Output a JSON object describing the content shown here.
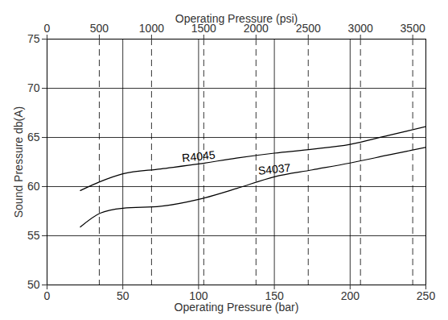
{
  "chart_data": {
    "type": "line",
    "xlabel": "Operating Pressure (bar)",
    "ylabel": "Sound Pressure db(A)",
    "x2label": "Operating Pressure (psi)",
    "xlim": [
      0,
      250
    ],
    "xticks": [
      0,
      50,
      100,
      150,
      200,
      250
    ],
    "x2lim": [
      0,
      3626
    ],
    "x2ticks": [
      0,
      500,
      1000,
      1500,
      2000,
      2500,
      3000,
      3500
    ],
    "ylim": [
      50,
      75
    ],
    "yticks": [
      50,
      55,
      60,
      65,
      70,
      75
    ],
    "grid": true,
    "x": [
      22,
      35,
      50,
      75,
      100,
      125,
      150,
      175,
      200,
      225,
      250
    ],
    "series": [
      {
        "name": "R4045",
        "color": "#000000",
        "values": [
          59.6,
          60.5,
          61.3,
          61.8,
          62.3,
          62.9,
          63.4,
          63.8,
          64.3,
          65.2,
          66.1
        ]
      },
      {
        "name": "S4037",
        "color": "#000000",
        "values": [
          55.9,
          57.3,
          57.8,
          58.0,
          58.7,
          59.8,
          61.0,
          61.7,
          62.4,
          63.2,
          64.0
        ]
      }
    ]
  }
}
